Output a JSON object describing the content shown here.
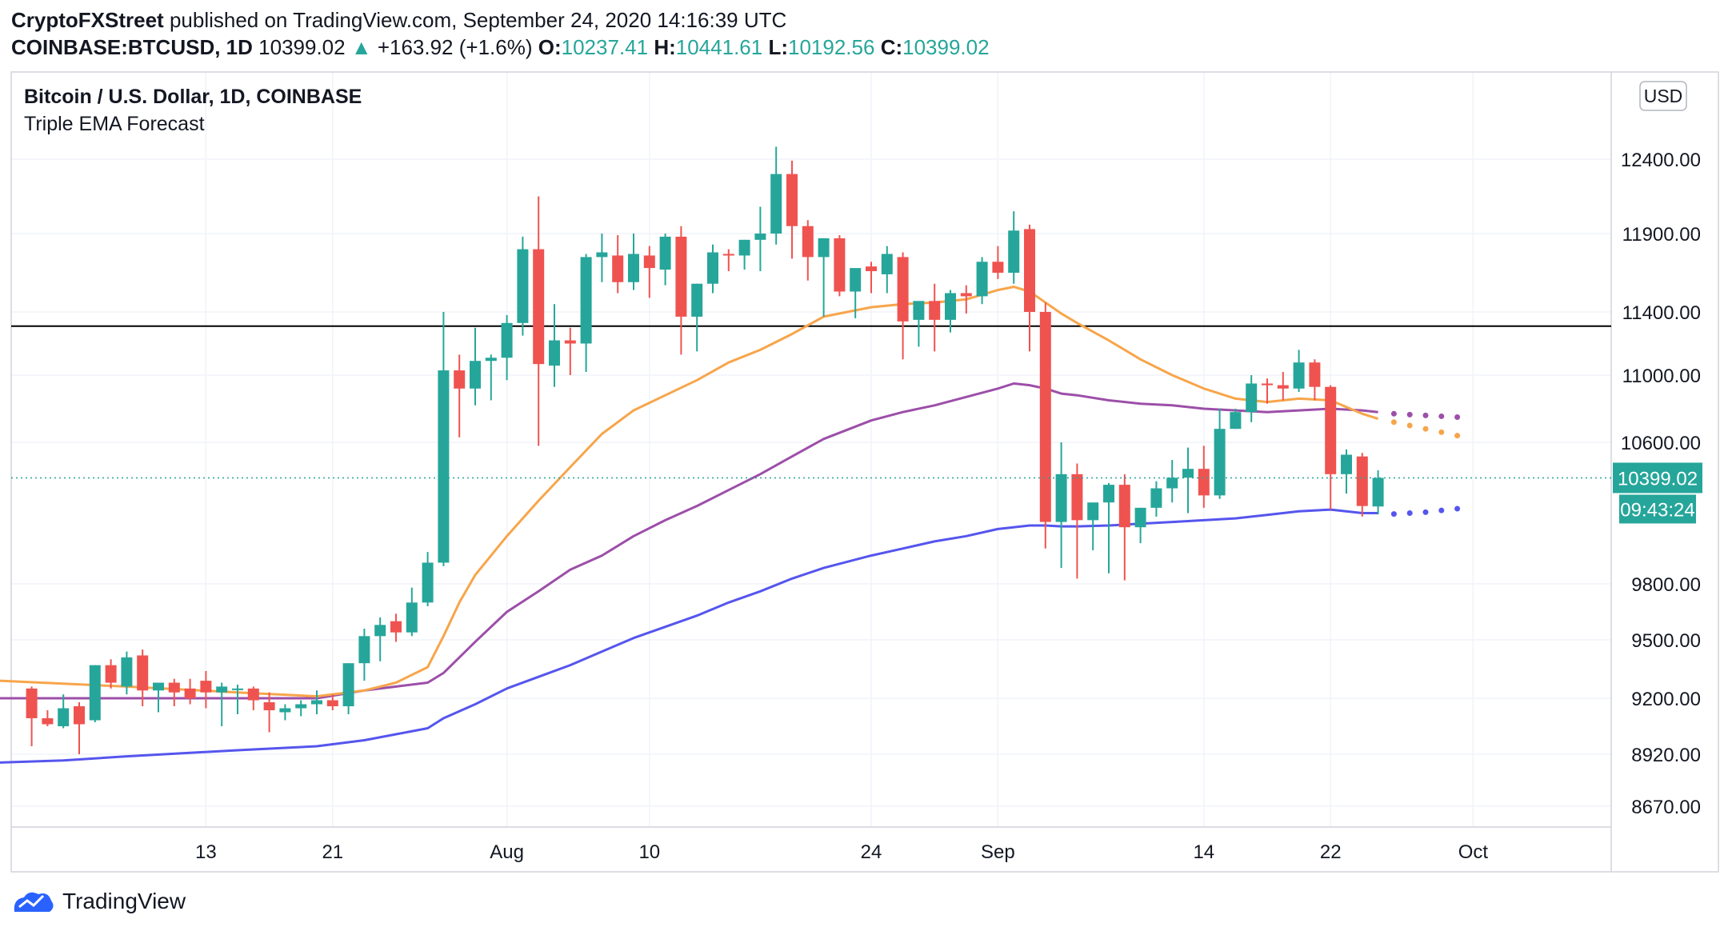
{
  "header": {
    "publisher": "CryptoFXStreet",
    "published_text": "published on TradingView.com, September 24, 2020 14:16:39 UTC",
    "symbol": "COINBASE:BTCUSD, 1D",
    "last": "10399.02",
    "change": "+163.92 (+1.6%)",
    "o_label": "O:",
    "o": "10237.41",
    "h_label": "H:",
    "h": "10441.61",
    "l_label": "L:",
    "l": "10192.56",
    "c_label": "C:",
    "c": "10399.02"
  },
  "branding": {
    "name": "TradingView"
  },
  "colors": {
    "up": "#26a69a",
    "down": "#ef5350",
    "ema_fast": "#f7a54a",
    "ema_mid": "#9c4fa8",
    "ema_slow": "#5555ee",
    "hline": "#000000"
  },
  "chart_data": {
    "type": "candlestick",
    "title": "Bitcoin / U.S. Dollar, 1D, COINBASE",
    "subtitle": "Triple EMA Forecast",
    "currency_button": "USD",
    "y_ticks": [
      8670,
      8920,
      9200,
      9500,
      9800,
      10600,
      11000,
      11400,
      11900,
      12400
    ],
    "y_tick_labels": [
      "8670.00",
      "8920.00",
      "9200.00",
      "9500.00",
      "9800.00",
      "10600.00",
      "11000.00",
      "11400.00",
      "11900.00",
      "12400.00"
    ],
    "ylim": [
      8610,
      12860
    ],
    "x_labels": [
      {
        "label": "13",
        "day": 13
      },
      {
        "label": "21",
        "day": 21
      },
      {
        "label": "Aug",
        "day": 32
      },
      {
        "label": "10",
        "day": 41
      },
      {
        "label": "24",
        "day": 55
      },
      {
        "label": "Sep",
        "day": 63
      },
      {
        "label": "14",
        "day": 76
      },
      {
        "label": "22",
        "day": 84
      },
      {
        "label": "Oct",
        "day": 93
      }
    ],
    "current_price": {
      "value": 10399.02,
      "label": "10399.02",
      "countdown": "09:43:24"
    },
    "horizontal_line": 11310,
    "candles": [
      {
        "d": 2,
        "o": 9250,
        "h": 9260,
        "l": 8960,
        "c": 9100
      },
      {
        "d": 3,
        "o": 9100,
        "h": 9140,
        "l": 9060,
        "c": 9070
      },
      {
        "d": 4,
        "o": 9060,
        "h": 9220,
        "l": 9050,
        "c": 9150
      },
      {
        "d": 5,
        "o": 9160,
        "h": 9180,
        "l": 8920,
        "c": 9070
      },
      {
        "d": 6,
        "o": 9090,
        "h": 9370,
        "l": 9080,
        "c": 9370
      },
      {
        "d": 7,
        "o": 9370,
        "h": 9400,
        "l": 9250,
        "c": 9280
      },
      {
        "d": 8,
        "o": 9260,
        "h": 9440,
        "l": 9220,
        "c": 9410
      },
      {
        "d": 9,
        "o": 9420,
        "h": 9450,
        "l": 9160,
        "c": 9240
      },
      {
        "d": 10,
        "o": 9240,
        "h": 9280,
        "l": 9130,
        "c": 9280
      },
      {
        "d": 11,
        "o": 9280,
        "h": 9300,
        "l": 9160,
        "c": 9230
      },
      {
        "d": 12,
        "o": 9250,
        "h": 9300,
        "l": 9170,
        "c": 9200
      },
      {
        "d": 13,
        "o": 9290,
        "h": 9340,
        "l": 9150,
        "c": 9230
      },
      {
        "d": 14,
        "o": 9230,
        "h": 9280,
        "l": 9060,
        "c": 9260
      },
      {
        "d": 15,
        "o": 9250,
        "h": 9270,
        "l": 9120,
        "c": 9250
      },
      {
        "d": 16,
        "o": 9250,
        "h": 9260,
        "l": 9140,
        "c": 9190
      },
      {
        "d": 17,
        "o": 9180,
        "h": 9230,
        "l": 9030,
        "c": 9140
      },
      {
        "d": 18,
        "o": 9130,
        "h": 9170,
        "l": 9090,
        "c": 9150
      },
      {
        "d": 19,
        "o": 9150,
        "h": 9190,
        "l": 9110,
        "c": 9170
      },
      {
        "d": 20,
        "o": 9170,
        "h": 9240,
        "l": 9120,
        "c": 9190
      },
      {
        "d": 21,
        "o": 9190,
        "h": 9220,
        "l": 9140,
        "c": 9160
      },
      {
        "d": 22,
        "o": 9160,
        "h": 9380,
        "l": 9120,
        "c": 9380
      },
      {
        "d": 23,
        "o": 9380,
        "h": 9560,
        "l": 9290,
        "c": 9520
      },
      {
        "d": 24,
        "o": 9520,
        "h": 9620,
        "l": 9390,
        "c": 9580
      },
      {
        "d": 25,
        "o": 9600,
        "h": 9640,
        "l": 9490,
        "c": 9540
      },
      {
        "d": 26,
        "o": 9540,
        "h": 9780,
        "l": 9520,
        "c": 9700
      },
      {
        "d": 27,
        "o": 9700,
        "h": 9980,
        "l": 9680,
        "c": 9920
      },
      {
        "d": 28,
        "o": 9920,
        "h": 11400,
        "l": 9900,
        "c": 11030
      },
      {
        "d": 29,
        "o": 11030,
        "h": 11130,
        "l": 10630,
        "c": 10920
      },
      {
        "d": 30,
        "o": 10920,
        "h": 11300,
        "l": 10820,
        "c": 11090
      },
      {
        "d": 31,
        "o": 11090,
        "h": 11130,
        "l": 10850,
        "c": 11110
      },
      {
        "d": 32,
        "o": 11110,
        "h": 11380,
        "l": 10970,
        "c": 11330
      },
      {
        "d": 33,
        "o": 11330,
        "h": 11880,
        "l": 11250,
        "c": 11800
      },
      {
        "d": 34,
        "o": 11800,
        "h": 12150,
        "l": 10580,
        "c": 11070
      },
      {
        "d": 35,
        "o": 11060,
        "h": 11450,
        "l": 10930,
        "c": 11220
      },
      {
        "d": 36,
        "o": 11220,
        "h": 11300,
        "l": 11000,
        "c": 11200
      },
      {
        "d": 37,
        "o": 11200,
        "h": 11770,
        "l": 11020,
        "c": 11750
      },
      {
        "d": 38,
        "o": 11750,
        "h": 11900,
        "l": 11590,
        "c": 11780
      },
      {
        "d": 39,
        "o": 11760,
        "h": 11890,
        "l": 11520,
        "c": 11590
      },
      {
        "d": 40,
        "o": 11590,
        "h": 11900,
        "l": 11540,
        "c": 11770
      },
      {
        "d": 41,
        "o": 11760,
        "h": 11820,
        "l": 11490,
        "c": 11680
      },
      {
        "d": 42,
        "o": 11670,
        "h": 11900,
        "l": 11570,
        "c": 11880
      },
      {
        "d": 43,
        "o": 11880,
        "h": 11950,
        "l": 11130,
        "c": 11370
      },
      {
        "d": 44,
        "o": 11370,
        "h": 11580,
        "l": 11150,
        "c": 11580
      },
      {
        "d": 45,
        "o": 11580,
        "h": 11830,
        "l": 11520,
        "c": 11780
      },
      {
        "d": 46,
        "o": 11770,
        "h": 11800,
        "l": 11660,
        "c": 11760
      },
      {
        "d": 47,
        "o": 11760,
        "h": 11860,
        "l": 11670,
        "c": 11860
      },
      {
        "d": 48,
        "o": 11860,
        "h": 12080,
        "l": 11660,
        "c": 11900
      },
      {
        "d": 49,
        "o": 11900,
        "h": 12480,
        "l": 11830,
        "c": 12300
      },
      {
        "d": 50,
        "o": 12300,
        "h": 12390,
        "l": 11740,
        "c": 11950
      },
      {
        "d": 51,
        "o": 11950,
        "h": 11990,
        "l": 11600,
        "c": 11750
      },
      {
        "d": 52,
        "o": 11750,
        "h": 11870,
        "l": 11370,
        "c": 11870
      },
      {
        "d": 53,
        "o": 11870,
        "h": 11890,
        "l": 11500,
        "c": 11530
      },
      {
        "d": 54,
        "o": 11530,
        "h": 11650,
        "l": 11360,
        "c": 11680
      },
      {
        "d": 55,
        "o": 11690,
        "h": 11720,
        "l": 11520,
        "c": 11660
      },
      {
        "d": 56,
        "o": 11640,
        "h": 11820,
        "l": 11520,
        "c": 11770
      },
      {
        "d": 57,
        "o": 11750,
        "h": 11780,
        "l": 11100,
        "c": 11340
      },
      {
        "d": 58,
        "o": 11350,
        "h": 11460,
        "l": 11180,
        "c": 11470
      },
      {
        "d": 59,
        "o": 11470,
        "h": 11580,
        "l": 11150,
        "c": 11350
      },
      {
        "d": 60,
        "o": 11350,
        "h": 11540,
        "l": 11270,
        "c": 11520
      },
      {
        "d": 61,
        "o": 11520,
        "h": 11570,
        "l": 11390,
        "c": 11500
      },
      {
        "d": 62,
        "o": 11500,
        "h": 11750,
        "l": 11450,
        "c": 11720
      },
      {
        "d": 63,
        "o": 11720,
        "h": 11820,
        "l": 11610,
        "c": 11650
      },
      {
        "d": 64,
        "o": 11650,
        "h": 12050,
        "l": 11580,
        "c": 11920
      },
      {
        "d": 65,
        "o": 11930,
        "h": 11960,
        "l": 11150,
        "c": 11400
      },
      {
        "d": 66,
        "o": 11400,
        "h": 11460,
        "l": 10000,
        "c": 10150
      },
      {
        "d": 67,
        "o": 10150,
        "h": 10600,
        "l": 9890,
        "c": 10420
      },
      {
        "d": 68,
        "o": 10420,
        "h": 10480,
        "l": 9830,
        "c": 10160
      },
      {
        "d": 69,
        "o": 10160,
        "h": 10250,
        "l": 9990,
        "c": 10260
      },
      {
        "d": 70,
        "o": 10260,
        "h": 10370,
        "l": 9860,
        "c": 10360
      },
      {
        "d": 71,
        "o": 10360,
        "h": 10420,
        "l": 9820,
        "c": 10120
      },
      {
        "d": 72,
        "o": 10120,
        "h": 10230,
        "l": 10030,
        "c": 10230
      },
      {
        "d": 73,
        "o": 10230,
        "h": 10380,
        "l": 10180,
        "c": 10340
      },
      {
        "d": 74,
        "o": 10340,
        "h": 10500,
        "l": 10260,
        "c": 10400
      },
      {
        "d": 75,
        "o": 10400,
        "h": 10570,
        "l": 10200,
        "c": 10450
      },
      {
        "d": 76,
        "o": 10450,
        "h": 10580,
        "l": 10230,
        "c": 10300
      },
      {
        "d": 77,
        "o": 10300,
        "h": 10800,
        "l": 10280,
        "c": 10680
      },
      {
        "d": 78,
        "o": 10680,
        "h": 10800,
        "l": 10680,
        "c": 10780
      },
      {
        "d": 79,
        "o": 10780,
        "h": 11000,
        "l": 10720,
        "c": 10950
      },
      {
        "d": 80,
        "o": 10950,
        "h": 10980,
        "l": 10830,
        "c": 10940
      },
      {
        "d": 81,
        "o": 10940,
        "h": 11020,
        "l": 10850,
        "c": 10920
      },
      {
        "d": 82,
        "o": 10920,
        "h": 11160,
        "l": 10900,
        "c": 11080
      },
      {
        "d": 83,
        "o": 11080,
        "h": 11100,
        "l": 10850,
        "c": 10930
      },
      {
        "d": 84,
        "o": 10930,
        "h": 10940,
        "l": 10220,
        "c": 10420
      },
      {
        "d": 85,
        "o": 10420,
        "h": 10560,
        "l": 10310,
        "c": 10530
      },
      {
        "d": 86,
        "o": 10520,
        "h": 10540,
        "l": 10180,
        "c": 10240
      },
      {
        "d": 87,
        "o": 10237.41,
        "h": 10441.61,
        "l": 10192.56,
        "c": 10399.02
      }
    ],
    "ema_fast": {
      "d": [
        0,
        8,
        15,
        20,
        23,
        25,
        27,
        28,
        29,
        30,
        32,
        34,
        36,
        38,
        40,
        42,
        44,
        46,
        48,
        50,
        52,
        55,
        57,
        59,
        61,
        63,
        64,
        65,
        66,
        67,
        68,
        70,
        72,
        74,
        76,
        78,
        80,
        82,
        84,
        86,
        87
      ],
      "v": [
        9290,
        9260,
        9230,
        9210,
        9240,
        9280,
        9360,
        9520,
        9700,
        9850,
        10070,
        10270,
        10460,
        10650,
        10790,
        10880,
        10970,
        11080,
        11160,
        11260,
        11370,
        11430,
        11450,
        11460,
        11480,
        11540,
        11560,
        11530,
        11460,
        11390,
        11330,
        11220,
        11100,
        11000,
        10920,
        10860,
        10840,
        10860,
        10850,
        10770,
        10740
      ]
    },
    "ema_mid": {
      "d": [
        0,
        8,
        15,
        20,
        23,
        25,
        27,
        28,
        30,
        32,
        34,
        36,
        38,
        40,
        42,
        44,
        46,
        48,
        50,
        52,
        55,
        57,
        59,
        61,
        63,
        64,
        65,
        66,
        67,
        68,
        70,
        72,
        74,
        76,
        78,
        80,
        82,
        84,
        86,
        87
      ],
      "v": [
        9200,
        9200,
        9200,
        9200,
        9240,
        9260,
        9280,
        9330,
        9490,
        9650,
        9760,
        9880,
        9960,
        10070,
        10160,
        10240,
        10330,
        10420,
        10520,
        10620,
        10730,
        10780,
        10820,
        10870,
        10920,
        10950,
        10940,
        10920,
        10890,
        10880,
        10850,
        10830,
        10820,
        10800,
        10790,
        10780,
        10790,
        10800,
        10790,
        10780
      ]
    },
    "ema_slow": {
      "d": [
        0,
        4,
        8,
        15,
        20,
        23,
        25,
        27,
        28,
        30,
        32,
        34,
        36,
        38,
        40,
        42,
        44,
        46,
        48,
        50,
        52,
        55,
        57,
        59,
        61,
        63,
        64,
        65,
        66,
        67,
        68,
        70,
        72,
        74,
        76,
        78,
        80,
        82,
        84,
        86,
        87
      ],
      "v": [
        8880,
        8890,
        8910,
        8940,
        8960,
        8990,
        9020,
        9050,
        9100,
        9170,
        9250,
        9310,
        9370,
        9440,
        9510,
        9570,
        9630,
        9700,
        9760,
        9830,
        9890,
        9960,
        10000,
        10040,
        10070,
        10110,
        10120,
        10130,
        10130,
        10125,
        10125,
        10130,
        10140,
        10150,
        10160,
        10170,
        10190,
        10210,
        10220,
        10200,
        10200
      ]
    },
    "forecast": {
      "ema_fast": {
        "d": [
          88,
          89,
          90,
          91,
          92
        ],
        "v": [
          10720,
          10700,
          10680,
          10660,
          10640
        ]
      },
      "ema_mid": {
        "d": [
          88,
          89,
          90,
          91,
          92
        ],
        "v": [
          10770,
          10765,
          10760,
          10755,
          10750
        ]
      },
      "ema_slow": {
        "d": [
          88,
          89,
          90,
          91,
          92
        ],
        "v": [
          10195,
          10200,
          10205,
          10215,
          10225
        ]
      }
    }
  }
}
